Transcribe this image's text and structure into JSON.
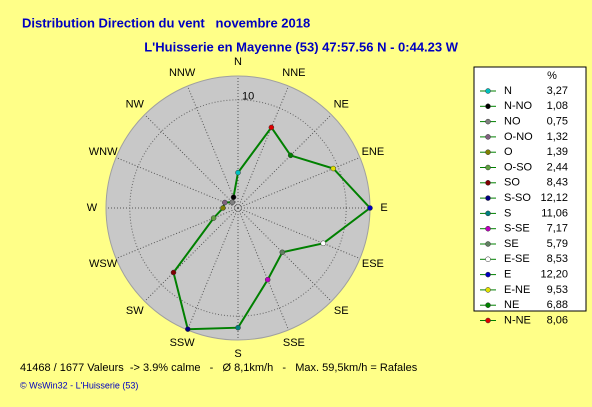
{
  "chart_data": {
    "type": "radar",
    "title": "Distribution Direction du vent   novembre 2018",
    "subtitle": "L'Huisserie en Mayenne (53) 47:57.56 N - 0:44.23 W",
    "categories": [
      "N",
      "NNE",
      "NE",
      "ENE",
      "E",
      "ESE",
      "SE",
      "SSE",
      "S",
      "SSW",
      "SW",
      "WSW",
      "W",
      "WNW",
      "NW",
      "NNW"
    ],
    "legend_labels": [
      "N",
      "N-NE",
      "NE",
      "E-NE",
      "E",
      "E-SE",
      "SE",
      "S-SE",
      "S",
      "S-SO",
      "SO",
      "O-SO",
      "O",
      "O-NO",
      "NO",
      "N-NO"
    ],
    "values": [
      3.27,
      8.06,
      6.88,
      9.53,
      12.2,
      8.53,
      5.79,
      7.17,
      11.06,
      12.12,
      8.43,
      2.44,
      1.39,
      1.32,
      0.75,
      1.08
    ],
    "value_labels": [
      "3,27",
      "8,06",
      "6,88",
      "9,53",
      "12,20",
      "8,53",
      "5,79",
      "7,17",
      "11,06",
      "12,12",
      "8,43",
      "2,44",
      "1,39",
      "1,32",
      "0,75",
      "1,08"
    ],
    "marker_colors": [
      "#00c0c0",
      "#e00000",
      "#008000",
      "#e0e000",
      "#0000c0",
      "#ffffff",
      "#608060",
      "#c000c0",
      "#008080",
      "#000080",
      "#800000",
      "#60a040",
      "#808000",
      "#806080",
      "#808080",
      "#000000"
    ],
    "color": "#008000",
    "rlim": [
      0,
      12.2
    ],
    "rticks": [
      10
    ],
    "legend_title": "%",
    "footer": "41468 / 1677 Valeurs  -> 3.9% calme   -   Ø 8,1km/h   -   Max. 59,5km/h = Rafales",
    "credit": "© WsWin32  -  L'Huisserie (53)"
  }
}
